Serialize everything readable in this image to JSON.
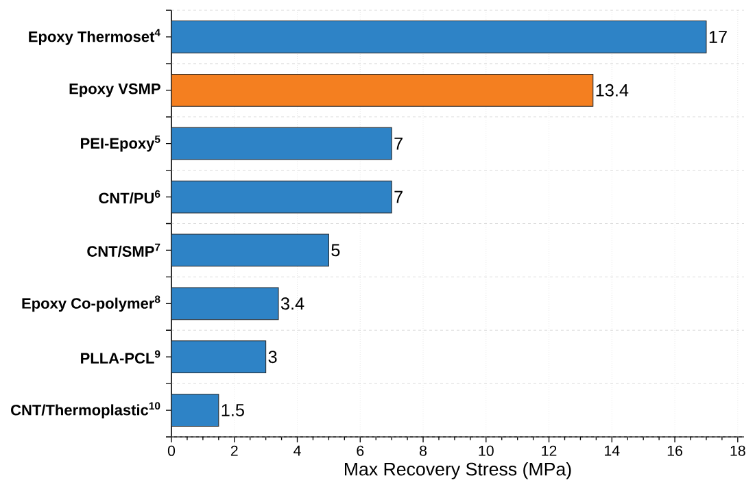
{
  "chart_data": {
    "type": "bar",
    "orientation": "horizontal",
    "categories": [
      "Epoxy Thermoset$^{4}$",
      "Epoxy VSMP",
      "PEI-Epoxy$^{5}$",
      "CNT/PU$^{6}$",
      "CNT/SMP$^{7}$",
      "Epoxy Co-polymer$^{8}$",
      "PLLA-PCL$^{9}$",
      "CNT/Thermoplastic$^{10}$"
    ],
    "values": [
      17,
      13.4,
      7,
      7,
      5,
      3.4,
      3,
      1.5
    ],
    "colors": [
      "#2e83c6",
      "#f47f20",
      "#2e83c6",
      "#2e83c6",
      "#2e83c6",
      "#2e83c6",
      "#2e83c6",
      "#2e83c6"
    ],
    "xlim": [
      0,
      18.2
    ],
    "xticks": [
      0,
      2,
      4,
      6,
      8,
      10,
      12,
      14,
      16,
      18
    ],
    "xlabel": "Max Recovery Stress (MPa)",
    "grid": true,
    "data_labels": true
  }
}
